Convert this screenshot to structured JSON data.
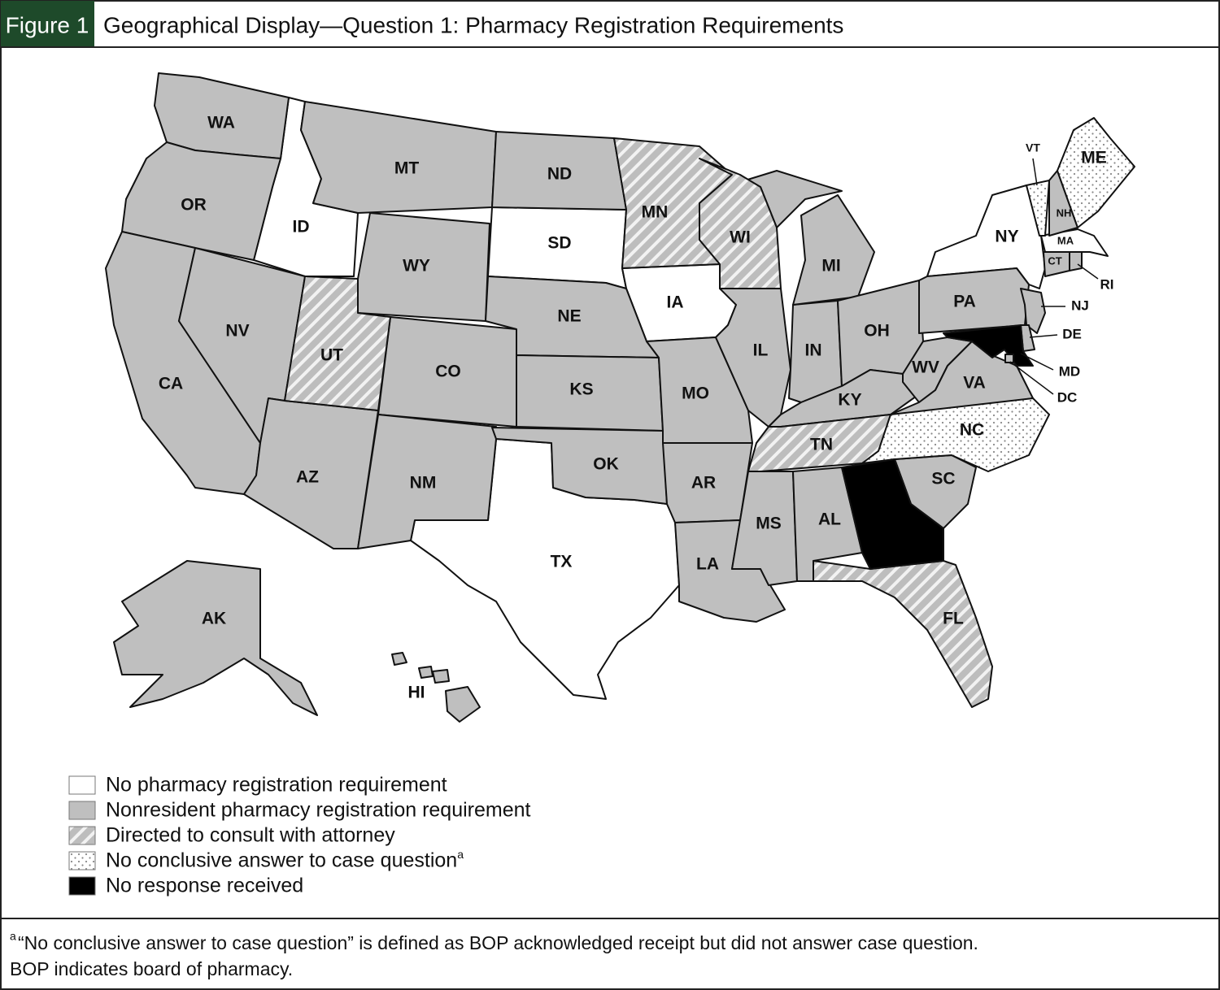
{
  "figure_label": "Figure 1",
  "title": "Geographical Display—Question 1: Pharmacy Registration Requirements",
  "note_marker": "a",
  "legend": [
    {
      "label": "No pharmacy registration requirement",
      "states": [
        "ID",
        "SD",
        "IA",
        "NY",
        "TX",
        "MA"
      ]
    },
    {
      "label": "Nonresident pharmacy registration requirement",
      "states": [
        "WA",
        "OR",
        "CA",
        "NV",
        "MT",
        "WY",
        "CO",
        "AZ",
        "NM",
        "ND",
        "NE",
        "KS",
        "OK",
        "MO",
        "AR",
        "LA",
        "MS",
        "AL",
        "IL",
        "IN",
        "MI",
        "OH",
        "KY",
        "WV",
        "VA",
        "PA",
        "NJ",
        "SC",
        "NH",
        "CT",
        "RI",
        "DE",
        "DC",
        "AK",
        "HI"
      ]
    },
    {
      "label": "Directed to consult with attorney",
      "states": [
        "UT",
        "MN",
        "WI",
        "TN",
        "FL"
      ]
    },
    {
      "label": "No conclusive answer to case question",
      "states": [
        "VT",
        "ME",
        "NC"
      ]
    },
    {
      "label": "No response received",
      "states": [
        null,
        "MD"
      ]
    }
  ],
  "footnote": [
    "“No conclusive answer to case question” is defined as BOP acknowledged receipt but did not answer case question.",
    "BOP indicates board of pharmacy."
  ]
}
